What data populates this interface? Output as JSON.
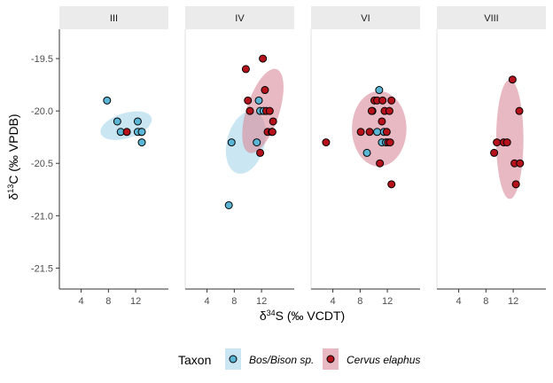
{
  "chart_data": {
    "type": "scatter",
    "facet_by": "Phase",
    "panels": [
      {
        "label": "III",
        "series": [
          {
            "name": "Bos/Bison sp.",
            "x": [
              7.8,
              9.3,
              9.8,
              12.3,
              12.8,
              12.3,
              12.9,
              12.9
            ],
            "y": [
              -19.9,
              -20.1,
              -20.2,
              -20.1,
              -20.2,
              -20.2,
              -20.2,
              -20.3
            ]
          },
          {
            "name": "Cervus elaphus",
            "x": [
              10.7
            ],
            "y": [
              -20.2
            ]
          }
        ],
        "ellipses": [
          {
            "series": "Bos/Bison sp.",
            "cx": 10.6,
            "cy": -20.14,
            "rx": 3.9,
            "ry": 0.12,
            "angle_deg": -17
          }
        ]
      },
      {
        "label": "IV",
        "series": [
          {
            "name": "Bos/Bison sp.",
            "x": [
              7.2,
              7.6,
              11.3,
              11.6,
              11.8,
              12.3
            ],
            "y": [
              -20.9,
              -20.3,
              -20.3,
              -19.9,
              -20.0,
              -20.0
            ]
          },
          {
            "name": "Cervus elaphus",
            "x": [
              9.7,
              10.0,
              10.3,
              11.8,
              12.2,
              12.5,
              12.7,
              12.9,
              13.2,
              13.5,
              13.6,
              13.7
            ],
            "y": [
              -19.6,
              -19.9,
              -20.0,
              -20.4,
              -19.5,
              -19.8,
              -20.0,
              -20.2,
              -20.0,
              -20.2,
              -20.2,
              -20.1
            ]
          }
        ],
        "ellipses": [
          {
            "series": "Bos/Bison sp.",
            "cx": 9.7,
            "cy": -20.3,
            "rx": 4.7,
            "ry": 0.18,
            "angle_deg": -75
          },
          {
            "series": "Cervus elaphus",
            "cx": 12.2,
            "cy": -20.0,
            "rx": 2.4,
            "ry": 0.42,
            "angle_deg": 18
          }
        ]
      },
      {
        "label": "VI",
        "series": [
          {
            "name": "Bos/Bison sp.",
            "x": [
              9.0,
              9.8,
              10.5,
              10.8,
              11.2,
              11.5,
              11.8
            ],
            "y": [
              -20.4,
              -20.0,
              -20.2,
              -19.8,
              -20.3,
              -20.2,
              -20.3
            ]
          },
          {
            "name": "Cervus elaphus",
            "x": [
              3.0,
              8.1,
              9.4,
              9.7,
              10.1,
              10.5,
              10.9,
              11.2,
              11.3,
              11.6,
              11.9,
              12.1,
              12.3,
              12.4,
              12.6,
              12.6
            ],
            "y": [
              -20.3,
              -20.2,
              -20.2,
              -20.0,
              -19.9,
              -19.9,
              -20.5,
              -20.1,
              -19.9,
              -20.0,
              -20.2,
              -20.3,
              -20.0,
              -20.3,
              -19.9,
              -20.7
            ]
          }
        ],
        "ellipses": [
          {
            "series": "Cervus elaphus",
            "cx": 10.8,
            "cy": -20.17,
            "rx": 4.0,
            "ry": 0.36,
            "angle_deg": 0
          }
        ]
      },
      {
        "label": "VIII",
        "series": [
          {
            "name": "Cervus elaphus",
            "x": [
              9.2,
              9.6,
              10.6,
              11.1,
              11.9,
              12.2,
              12.4,
              12.9,
              13.0
            ],
            "y": [
              -20.4,
              -20.3,
              -20.3,
              -20.3,
              -19.7,
              -20.5,
              -20.7,
              -20.0,
              -20.5
            ]
          }
        ],
        "ellipses": [
          {
            "series": "Cervus elaphus",
            "cx": 11.5,
            "cy": -20.27,
            "rx": 2.0,
            "ry": 0.57,
            "angle_deg": 0
          }
        ]
      }
    ],
    "xlabel": "δ34S (‰ VCDT)",
    "ylabel": "δ13C (‰ VPDB)",
    "x_ticks": [
      4,
      8,
      12
    ],
    "y_ticks": [
      -19.5,
      -20.0,
      -20.5,
      -21.0,
      -21.5
    ],
    "y_tick_labels": [
      "-19.5",
      "-20.0",
      "-20.5",
      "-21.0",
      "-21.5"
    ],
    "xlim": [
      0.8,
      16.8
    ],
    "ylim": [
      -21.7,
      -19.22
    ],
    "grid": false,
    "legend": {
      "title": "Taxon",
      "position": "bottom",
      "items": [
        {
          "label": "Bos/Bison sp.",
          "point_color": "#5bb6d6",
          "fill_color": "#a6d6ea"
        },
        {
          "label": "Cervus elaphus",
          "point_color": "#b5121b",
          "fill_color": "#d98a9a"
        }
      ]
    },
    "colors": {
      "Bos/Bison sp.": {
        "point": "#5bb6d6",
        "fill": "#a6d6ea"
      },
      "Cervus elaphus": {
        "point": "#b5121b",
        "fill": "#d98a9a"
      }
    }
  }
}
